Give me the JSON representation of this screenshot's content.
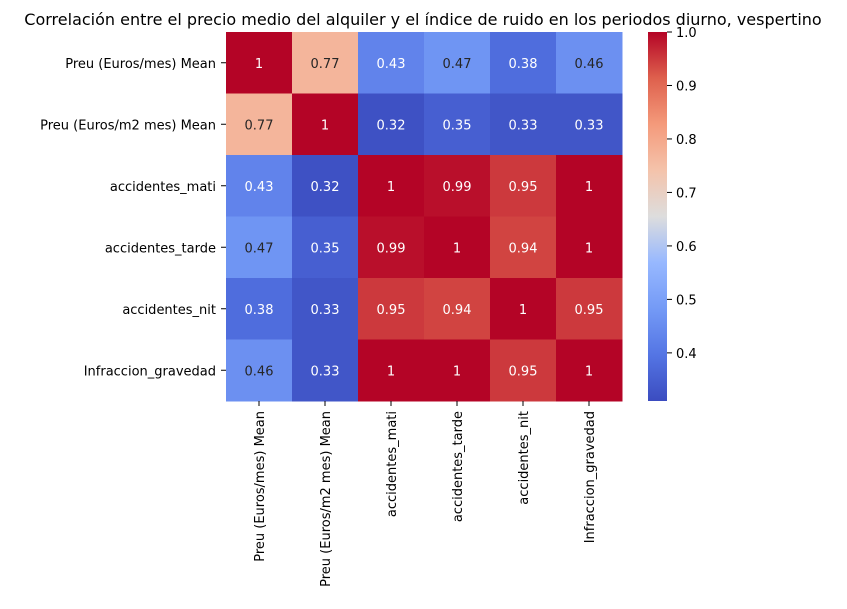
{
  "chart_data": {
    "type": "heatmap",
    "title": "Correlación entre el precio medio del alquiler y el índice de ruido en los periodos diurno, vespertino",
    "row_labels": [
      "Preu (Euros/mes) Mean",
      "Preu (Euros/m2 mes) Mean",
      "accidentes_mati",
      "accidentes_tarde",
      "accidentes_nit",
      "Infraccion_gravedad"
    ],
    "col_labels": [
      "Preu (Euros/mes) Mean",
      "Preu (Euros/m2 mes) Mean",
      "accidentes_mati",
      "accidentes_tarde",
      "accidentes_nit",
      "Infraccion_gravedad"
    ],
    "values": [
      [
        1,
        0.77,
        0.43,
        0.47,
        0.38,
        0.46
      ],
      [
        0.77,
        1,
        0.32,
        0.35,
        0.33,
        0.33
      ],
      [
        0.43,
        0.32,
        1,
        0.99,
        0.95,
        1
      ],
      [
        0.47,
        0.35,
        0.99,
        1,
        0.94,
        1
      ],
      [
        0.38,
        0.33,
        0.95,
        0.94,
        1,
        0.95
      ],
      [
        0.46,
        0.33,
        1,
        1,
        0.95,
        1
      ]
    ],
    "colormap": "coolwarm",
    "vmin": 0.31,
    "vmax": 1.0,
    "colorbar_ticks": [
      0.4,
      0.5,
      0.6,
      0.7,
      0.8,
      0.9,
      1.0
    ],
    "colorbar_tick_labels": [
      "0.4",
      "0.5",
      "0.6",
      "0.7",
      "0.8",
      "0.9",
      "1.0"
    ],
    "annotated": true
  }
}
